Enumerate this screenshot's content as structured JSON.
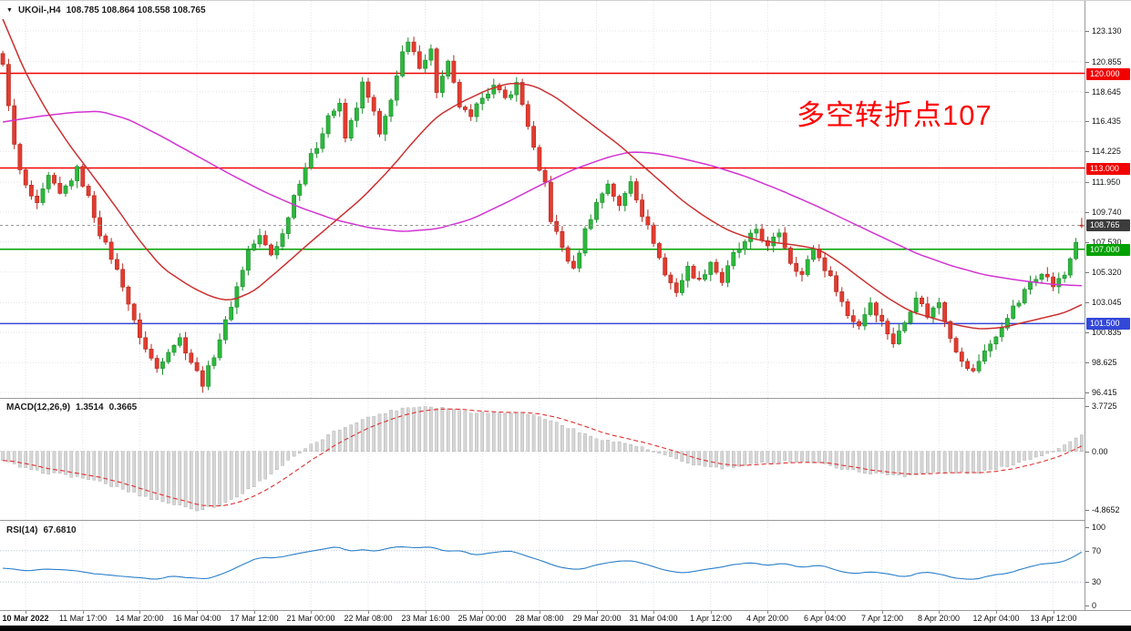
{
  "window": {
    "symbol_label": "UKOil-,H4",
    "ohlc_text": "108.785 108.864 108.558 108.765",
    "dropdown_icon": "▼"
  },
  "annotation": {
    "text": "多空转折点107",
    "color": "#FF0000"
  },
  "colors": {
    "bull": "#2db83d",
    "bull_border": "#1d8c2c",
    "bear": "#e23c30",
    "bear_border": "#b3271d",
    "ma_fast": "#cc2f2f",
    "ma_slow": "#d233d2",
    "grid": "#e4e4e4",
    "current_line": "#999999",
    "price_tag_bg": "#3c3c3c",
    "macd_bar": "#d6d6d6",
    "macd_bar_border": "#a6a6a6",
    "macd_signal": "#e03030",
    "rsi_line": "#2a7fc9",
    "rsi_level": "#b9c2d8",
    "panel_border": "#9a9a9a",
    "bottom_bar": "#050505"
  },
  "chart_data": [
    {
      "type": "candlestick",
      "symbol": "UKOil-",
      "timeframe": "H4",
      "ohlc_current": {
        "open": 108.785,
        "high": 108.864,
        "low": 108.558,
        "close": 108.765
      },
      "ylim": [
        96.415,
        123.13
      ],
      "y_ticks": [
        123.13,
        120.855,
        118.645,
        116.435,
        114.225,
        111.95,
        109.74,
        107.53,
        105.32,
        103.045,
        100.835,
        98.625,
        96.415
      ],
      "n_candles": 190,
      "label_start_index": 4,
      "label_step": 10,
      "time_labels": [
        "10 Mar 2022",
        "11 Mar 17:00",
        "14 Mar 20:00",
        "16 Mar 04:00",
        "17 Mar 12:00",
        "21 Mar 00:00",
        "22 Mar 08:00",
        "23 Mar 16:00",
        "25 Mar 00:00",
        "28 Mar 08:00",
        "29 Mar 20:00",
        "31 Mar 04:00",
        "1 Apr 12:00",
        "4 Apr 20:00",
        "6 Apr 04:00",
        "7 Apr 12:00",
        "8 Apr 20:00",
        "12 Apr 04:00",
        "13 Apr 12:00"
      ],
      "hlines": [
        {
          "price": 120.0,
          "label": "120.000",
          "color": "#f20000"
        },
        {
          "price": 113.0,
          "label": "113.000",
          "color": "#f20000"
        },
        {
          "price": 107.0,
          "label": "107.000",
          "color": "#00a000"
        },
        {
          "price": 101.5,
          "label": "101.500",
          "color": "#3348d8"
        }
      ],
      "current_price": {
        "value": 108.765,
        "label": "108.765"
      },
      "price_path": [
        [
          0,
          120.5
        ],
        [
          1,
          117.8
        ],
        [
          2,
          114.6
        ],
        [
          3,
          112.8
        ],
        [
          4,
          111.6
        ],
        [
          6,
          110.2
        ],
        [
          8,
          112.3
        ],
        [
          10,
          111.0
        ],
        [
          12,
          112.2
        ],
        [
          13,
          112.9
        ],
        [
          15,
          110.8
        ],
        [
          17,
          108.2
        ],
        [
          19,
          106.4
        ],
        [
          21,
          104.4
        ],
        [
          23,
          101.6
        ],
        [
          25,
          99.6
        ],
        [
          27,
          98.2
        ],
        [
          29,
          99.6
        ],
        [
          31,
          100.4
        ],
        [
          33,
          98.7
        ],
        [
          35,
          97.1
        ],
        [
          37,
          99.2
        ],
        [
          39,
          101.6
        ],
        [
          41,
          104.2
        ],
        [
          43,
          106.9
        ],
        [
          45,
          107.9
        ],
        [
          47,
          106.6
        ],
        [
          49,
          108.1
        ],
        [
          51,
          111.0
        ],
        [
          53,
          113.1
        ],
        [
          55,
          114.6
        ],
        [
          57,
          116.9
        ],
        [
          59,
          117.6
        ],
        [
          60,
          115.2
        ],
        [
          62,
          117.6
        ],
        [
          63,
          119.2
        ],
        [
          65,
          117.1
        ],
        [
          66,
          115.3
        ],
        [
          68,
          118.2
        ],
        [
          70,
          121.4
        ],
        [
          71,
          122.2
        ],
        [
          73,
          120.6
        ],
        [
          75,
          121.7
        ],
        [
          76,
          118.7
        ],
        [
          78,
          120.7
        ],
        [
          80,
          117.6
        ],
        [
          82,
          116.6
        ],
        [
          84,
          118.4
        ],
        [
          86,
          119.0
        ],
        [
          88,
          118.1
        ],
        [
          90,
          119.2
        ],
        [
          92,
          116.2
        ],
        [
          94,
          112.6
        ],
        [
          95,
          111.9
        ],
        [
          96,
          109.2
        ],
        [
          98,
          107.1
        ],
        [
          100,
          105.4
        ],
        [
          102,
          108.4
        ],
        [
          104,
          110.4
        ],
        [
          106,
          111.9
        ],
        [
          108,
          110.1
        ],
        [
          110,
          112.1
        ],
        [
          112,
          109.6
        ],
        [
          114,
          107.6
        ],
        [
          116,
          105.1
        ],
        [
          118,
          103.9
        ],
        [
          120,
          105.6
        ],
        [
          122,
          104.6
        ],
        [
          124,
          106.1
        ],
        [
          126,
          104.6
        ],
        [
          128,
          106.6
        ],
        [
          130,
          107.4
        ],
        [
          132,
          108.5
        ],
        [
          134,
          107.1
        ],
        [
          136,
          108.3
        ],
        [
          138,
          106.1
        ],
        [
          140,
          105.1
        ],
        [
          142,
          107.1
        ],
        [
          144,
          105.6
        ],
        [
          146,
          104.1
        ],
        [
          148,
          102.1
        ],
        [
          150,
          101.4
        ],
        [
          152,
          103.1
        ],
        [
          154,
          101.6
        ],
        [
          156,
          100.1
        ],
        [
          158,
          101.6
        ],
        [
          160,
          103.6
        ],
        [
          162,
          102.1
        ],
        [
          164,
          103.1
        ],
        [
          166,
          100.6
        ],
        [
          168,
          98.6
        ],
        [
          170,
          97.9
        ],
        [
          172,
          99.6
        ],
        [
          174,
          100.4
        ],
        [
          176,
          102.1
        ],
        [
          178,
          103.1
        ],
        [
          180,
          104.6
        ],
        [
          182,
          105.4
        ],
        [
          184,
          104.3
        ],
        [
          186,
          105.1
        ],
        [
          188,
          107.6
        ],
        [
          189,
          108.765
        ]
      ],
      "ma_fast_path": [
        [
          0,
          124.0
        ],
        [
          4,
          120.0
        ],
        [
          8,
          117.0
        ],
        [
          12,
          114.5
        ],
        [
          16,
          112.3
        ],
        [
          20,
          110.0
        ],
        [
          24,
          107.6
        ],
        [
          28,
          105.6
        ],
        [
          33,
          104.2
        ],
        [
          37,
          103.4
        ],
        [
          40,
          103.2
        ],
        [
          44,
          103.9
        ],
        [
          49,
          105.7
        ],
        [
          53,
          107.2
        ],
        [
          58,
          109.0
        ],
        [
          63,
          110.8
        ],
        [
          68,
          113.0
        ],
        [
          72,
          115.0
        ],
        [
          76,
          116.8
        ],
        [
          80,
          117.8
        ],
        [
          85,
          118.8
        ],
        [
          89,
          119.3
        ],
        [
          93,
          119.1
        ],
        [
          97,
          118.2
        ],
        [
          102,
          116.6
        ],
        [
          108,
          114.7
        ],
        [
          112,
          113.2
        ],
        [
          115,
          112.1
        ],
        [
          119,
          110.6
        ],
        [
          123,
          109.4
        ],
        [
          127,
          108.4
        ],
        [
          131,
          107.8
        ],
        [
          135,
          107.5
        ],
        [
          139,
          107.3
        ],
        [
          143,
          107.0
        ],
        [
          147,
          105.9
        ],
        [
          151,
          104.6
        ],
        [
          155,
          103.4
        ],
        [
          159,
          102.4
        ],
        [
          163,
          101.9
        ],
        [
          167,
          101.4
        ],
        [
          171,
          101.1
        ],
        [
          175,
          101.2
        ],
        [
          179,
          101.6
        ],
        [
          183,
          102.0
        ],
        [
          186,
          102.3
        ],
        [
          189,
          102.9
        ]
      ],
      "ma_slow_path": [
        [
          0,
          116.4
        ],
        [
          6,
          116.8
        ],
        [
          12,
          117.1
        ],
        [
          17,
          117.2
        ],
        [
          22,
          116.6
        ],
        [
          28,
          115.3
        ],
        [
          34,
          113.9
        ],
        [
          40,
          112.5
        ],
        [
          46,
          111.2
        ],
        [
          52,
          110.1
        ],
        [
          58,
          109.2
        ],
        [
          64,
          108.6
        ],
        [
          70,
          108.3
        ],
        [
          76,
          108.5
        ],
        [
          82,
          109.2
        ],
        [
          88,
          110.4
        ],
        [
          94,
          111.7
        ],
        [
          100,
          112.9
        ],
        [
          106,
          113.8
        ],
        [
          110,
          114.2
        ],
        [
          114,
          114.1
        ],
        [
          118,
          113.8
        ],
        [
          124,
          113.2
        ],
        [
          130,
          112.4
        ],
        [
          136,
          111.4
        ],
        [
          142,
          110.3
        ],
        [
          148,
          109.1
        ],
        [
          154,
          107.9
        ],
        [
          160,
          106.7
        ],
        [
          166,
          105.8
        ],
        [
          172,
          105.1
        ],
        [
          178,
          104.7
        ],
        [
          184,
          104.4
        ],
        [
          189,
          104.3
        ]
      ]
    },
    {
      "type": "macd",
      "label": "MACD(12,26,9)",
      "value_main": "1.3514",
      "value_signal": "0.3665",
      "ylim": [
        -4.8652,
        3.7725
      ],
      "y_ticks": [
        "3.7725",
        "0.00",
        "-4.8652"
      ],
      "y_tick_values": [
        3.7725,
        0,
        -4.8652
      ],
      "macd_path": [
        [
          0,
          -0.8
        ],
        [
          5,
          -1.6
        ],
        [
          10,
          -1.9
        ],
        [
          15,
          -2.3
        ],
        [
          20,
          -3.0
        ],
        [
          25,
          -3.8
        ],
        [
          30,
          -4.4
        ],
        [
          34,
          -4.85
        ],
        [
          38,
          -4.5
        ],
        [
          42,
          -3.5
        ],
        [
          46,
          -2.2
        ],
        [
          50,
          -0.8
        ],
        [
          54,
          0.5
        ],
        [
          58,
          1.6
        ],
        [
          62,
          2.5
        ],
        [
          66,
          3.1
        ],
        [
          70,
          3.6
        ],
        [
          74,
          3.77
        ],
        [
          78,
          3.6
        ],
        [
          82,
          3.3
        ],
        [
          86,
          3.2
        ],
        [
          90,
          3.3
        ],
        [
          94,
          2.9
        ],
        [
          98,
          2.2
        ],
        [
          102,
          1.4
        ],
        [
          106,
          0.9
        ],
        [
          110,
          0.6
        ],
        [
          114,
          0.0
        ],
        [
          118,
          -0.7
        ],
        [
          122,
          -1.2
        ],
        [
          126,
          -1.4
        ],
        [
          130,
          -1.2
        ],
        [
          134,
          -0.9
        ],
        [
          138,
          -0.8
        ],
        [
          142,
          -0.9
        ],
        [
          146,
          -1.3
        ],
        [
          150,
          -1.7
        ],
        [
          154,
          -1.9
        ],
        [
          158,
          -2.0
        ],
        [
          162,
          -1.8
        ],
        [
          166,
          -1.7
        ],
        [
          170,
          -1.8
        ],
        [
          174,
          -1.5
        ],
        [
          178,
          -0.9
        ],
        [
          182,
          -0.3
        ],
        [
          185,
          0.3
        ],
        [
          187,
          0.8
        ],
        [
          189,
          1.3514
        ]
      ]
    },
    {
      "type": "rsi",
      "label": "RSI(14)",
      "value": "67.6810",
      "ylim": [
        0,
        100
      ],
      "y_ticks": [
        "100",
        "70",
        "30",
        "0"
      ],
      "y_tick_values": [
        100,
        70,
        30,
        0
      ],
      "levels": [
        70,
        30
      ],
      "rsi_path": [
        [
          0,
          48
        ],
        [
          4,
          44
        ],
        [
          8,
          47
        ],
        [
          12,
          45
        ],
        [
          16,
          41
        ],
        [
          20,
          38
        ],
        [
          24,
          35
        ],
        [
          27,
          33
        ],
        [
          30,
          38
        ],
        [
          33,
          35
        ],
        [
          36,
          34
        ],
        [
          39,
          42
        ],
        [
          42,
          52
        ],
        [
          45,
          62
        ],
        [
          48,
          60
        ],
        [
          51,
          66
        ],
        [
          54,
          70
        ],
        [
          57,
          73
        ],
        [
          59,
          75
        ],
        [
          61,
          68
        ],
        [
          63,
          73
        ],
        [
          65,
          69
        ],
        [
          67,
          72
        ],
        [
          70,
          76
        ],
        [
          72,
          74
        ],
        [
          75,
          75
        ],
        [
          78,
          68
        ],
        [
          80,
          71
        ],
        [
          83,
          64
        ],
        [
          86,
          68
        ],
        [
          89,
          70
        ],
        [
          92,
          63
        ],
        [
          95,
          55
        ],
        [
          98,
          48
        ],
        [
          101,
          45
        ],
        [
          104,
          52
        ],
        [
          107,
          56
        ],
        [
          110,
          58
        ],
        [
          113,
          52
        ],
        [
          116,
          45
        ],
        [
          119,
          41
        ],
        [
          122,
          45
        ],
        [
          125,
          48
        ],
        [
          128,
          52
        ],
        [
          131,
          55
        ],
        [
          134,
          51
        ],
        [
          137,
          54
        ],
        [
          140,
          48
        ],
        [
          143,
          52
        ],
        [
          146,
          45
        ],
        [
          149,
          40
        ],
        [
          152,
          44
        ],
        [
          155,
          40
        ],
        [
          158,
          36
        ],
        [
          161,
          43
        ],
        [
          164,
          41
        ],
        [
          167,
          35
        ],
        [
          170,
          33
        ],
        [
          173,
          38
        ],
        [
          176,
          41
        ],
        [
          179,
          48
        ],
        [
          182,
          53
        ],
        [
          185,
          55
        ],
        [
          187,
          60
        ],
        [
          189,
          67.68
        ]
      ]
    }
  ]
}
